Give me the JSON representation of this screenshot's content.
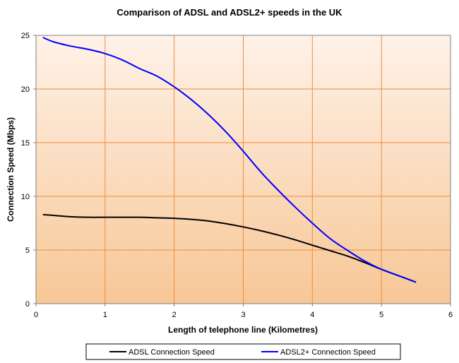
{
  "chart_data": {
    "type": "line",
    "title": "Comparison of ADSL and ADSL2+ speeds in the UK",
    "xlabel": "Length of telephone line (Kilometres)",
    "ylabel": "Connection Speed (Mbps)",
    "xlim": [
      0,
      6
    ],
    "ylim": [
      0,
      25
    ],
    "x_ticks": [
      "0",
      "1",
      "2",
      "3",
      "4",
      "5",
      "6"
    ],
    "y_ticks": [
      "0",
      "5",
      "10",
      "15",
      "20",
      "25"
    ],
    "grid": true,
    "legend_position": "bottom",
    "plot_background": [
      "#FEF2E8",
      "#F7C796"
    ],
    "grid_color": "#F08C3C",
    "series": [
      {
        "name": "ADSL Connection Speed",
        "color": "#000000",
        "x": [
          0.1,
          0.3,
          0.5,
          0.75,
          1.0,
          1.25,
          1.5,
          1.75,
          2.0,
          2.25,
          2.5,
          2.75,
          3.0,
          3.25,
          3.5,
          3.75,
          4.0,
          4.25,
          4.5,
          4.75,
          5.0,
          5.25,
          5.5
        ],
        "y": [
          8.3,
          8.2,
          8.1,
          8.05,
          8.05,
          8.05,
          8.05,
          8.0,
          7.95,
          7.85,
          7.7,
          7.45,
          7.15,
          6.8,
          6.4,
          5.95,
          5.45,
          4.95,
          4.45,
          3.85,
          3.2,
          2.6,
          2.0
        ]
      },
      {
        "name": "ADSL2+ Connection Speed",
        "color": "#0000FF",
        "x": [
          0.1,
          0.25,
          0.5,
          0.75,
          1.0,
          1.25,
          1.5,
          1.75,
          2.0,
          2.25,
          2.5,
          2.75,
          3.0,
          3.25,
          3.5,
          3.75,
          4.0,
          4.25,
          4.5,
          4.75,
          5.0,
          5.25,
          5.5
        ],
        "y": [
          24.8,
          24.4,
          24.0,
          23.7,
          23.3,
          22.7,
          21.9,
          21.2,
          20.2,
          19.0,
          17.6,
          16.0,
          14.2,
          12.3,
          10.6,
          9.0,
          7.5,
          6.1,
          5.0,
          4.0,
          3.2,
          2.6,
          2.0
        ]
      }
    ]
  }
}
